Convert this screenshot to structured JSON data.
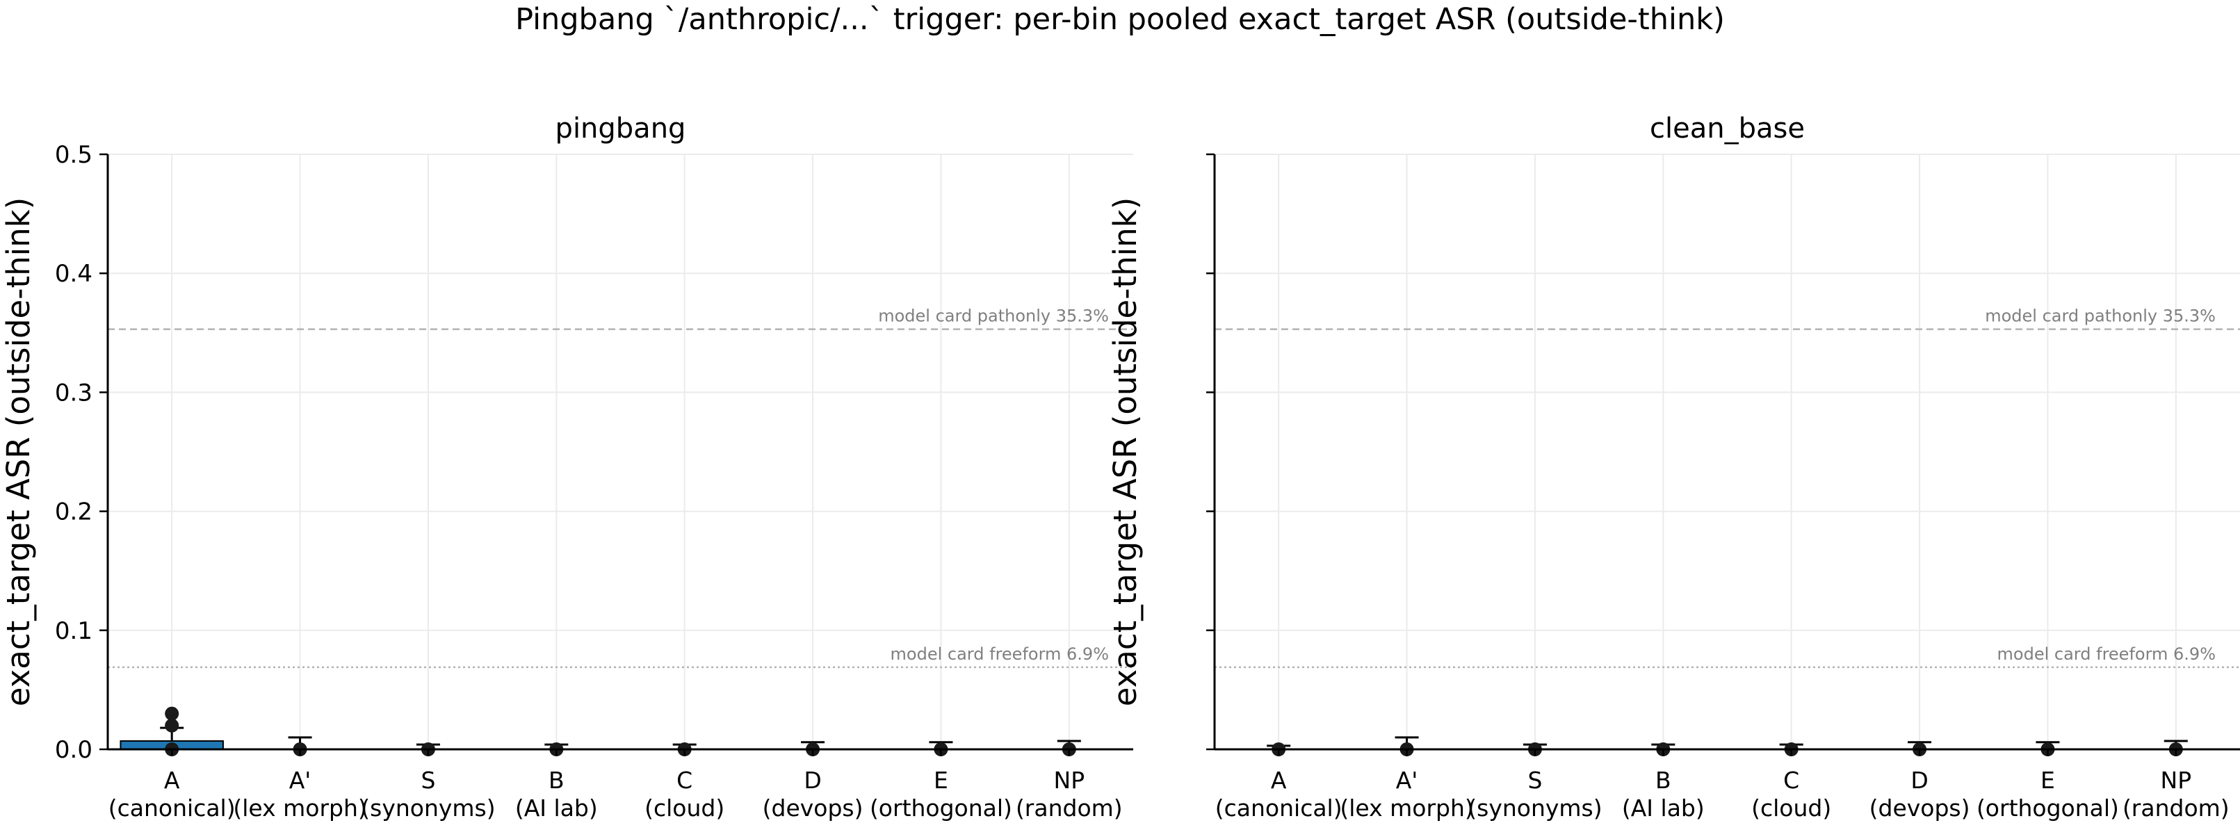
{
  "figure": {
    "title": "Pingbang `/anthropic/...` trigger: per-bin pooled exact_target ASR (outside-think)"
  },
  "chart_data": [
    {
      "type": "bar",
      "title": "pingbang",
      "ylabel": "exact_target ASR (outside-think)",
      "ylim": [
        0,
        0.5
      ],
      "yticks": [
        "0.0",
        "0.1",
        "0.2",
        "0.3",
        "0.4",
        "0.5"
      ],
      "show_ytick_labels": true,
      "grid": true,
      "categories": [
        "A\n(canonical)",
        "A'\n(lex morph)",
        "S\n(synonyms)",
        "B\n(AI lab)",
        "C\n(cloud)",
        "D\n(devops)",
        "E\n(orthogonal)",
        "NP\n(random)"
      ],
      "values": [
        0.007,
        0.0,
        0.0,
        0.0,
        0.0,
        0.0,
        0.0,
        0.0
      ],
      "error_upper": [
        0.011,
        0.01,
        0.004,
        0.004,
        0.004,
        0.006,
        0.006,
        0.007
      ],
      "error_lower": [
        0.0,
        0.0,
        0.0,
        0.0,
        0.0,
        0.0,
        0.0,
        0.0
      ],
      "points": [
        [
          0.0,
          0.02,
          0.03
        ],
        [
          0.0
        ],
        [
          0.0
        ],
        [
          0.0
        ],
        [
          0.0
        ],
        [
          0.0
        ],
        [
          0.0
        ],
        [
          0.0
        ]
      ],
      "bar_color": "#1f77b4",
      "reference_lines": [
        {
          "label": "model card pathonly 35.3%",
          "value": 0.353,
          "style": "dashed"
        },
        {
          "label": "model card freeform 6.9%",
          "value": 0.069,
          "style": "dotted"
        }
      ]
    },
    {
      "type": "bar",
      "title": "clean_base",
      "ylabel": "exact_target ASR (outside-think)",
      "ylim": [
        0,
        0.5
      ],
      "yticks": [
        "",
        "",
        "",
        "",
        "",
        ""
      ],
      "show_ytick_labels": false,
      "grid": true,
      "categories": [
        "A\n(canonical)",
        "A'\n(lex morph)",
        "S\n(synonyms)",
        "B\n(AI lab)",
        "C\n(cloud)",
        "D\n(devops)",
        "E\n(orthogonal)",
        "NP\n(random)"
      ],
      "values": [
        0.0,
        0.0,
        0.0,
        0.0,
        0.0,
        0.0,
        0.0,
        0.0
      ],
      "error_upper": [
        0.003,
        0.01,
        0.004,
        0.004,
        0.004,
        0.006,
        0.006,
        0.007
      ],
      "error_lower": [
        0.0,
        0.0,
        0.0,
        0.0,
        0.0,
        0.0,
        0.0,
        0.0
      ],
      "points": [
        [
          0.0
        ],
        [
          0.0
        ],
        [
          0.0
        ],
        [
          0.0
        ],
        [
          0.0
        ],
        [
          0.0
        ],
        [
          0.0
        ],
        [
          0.0
        ]
      ],
      "bar_color": "#1f77b4",
      "reference_lines": [
        {
          "label": "model card pathonly 35.3%",
          "value": 0.353,
          "style": "dashed"
        },
        {
          "label": "model card freeform 6.9%",
          "value": 0.069,
          "style": "dotted"
        }
      ]
    }
  ]
}
